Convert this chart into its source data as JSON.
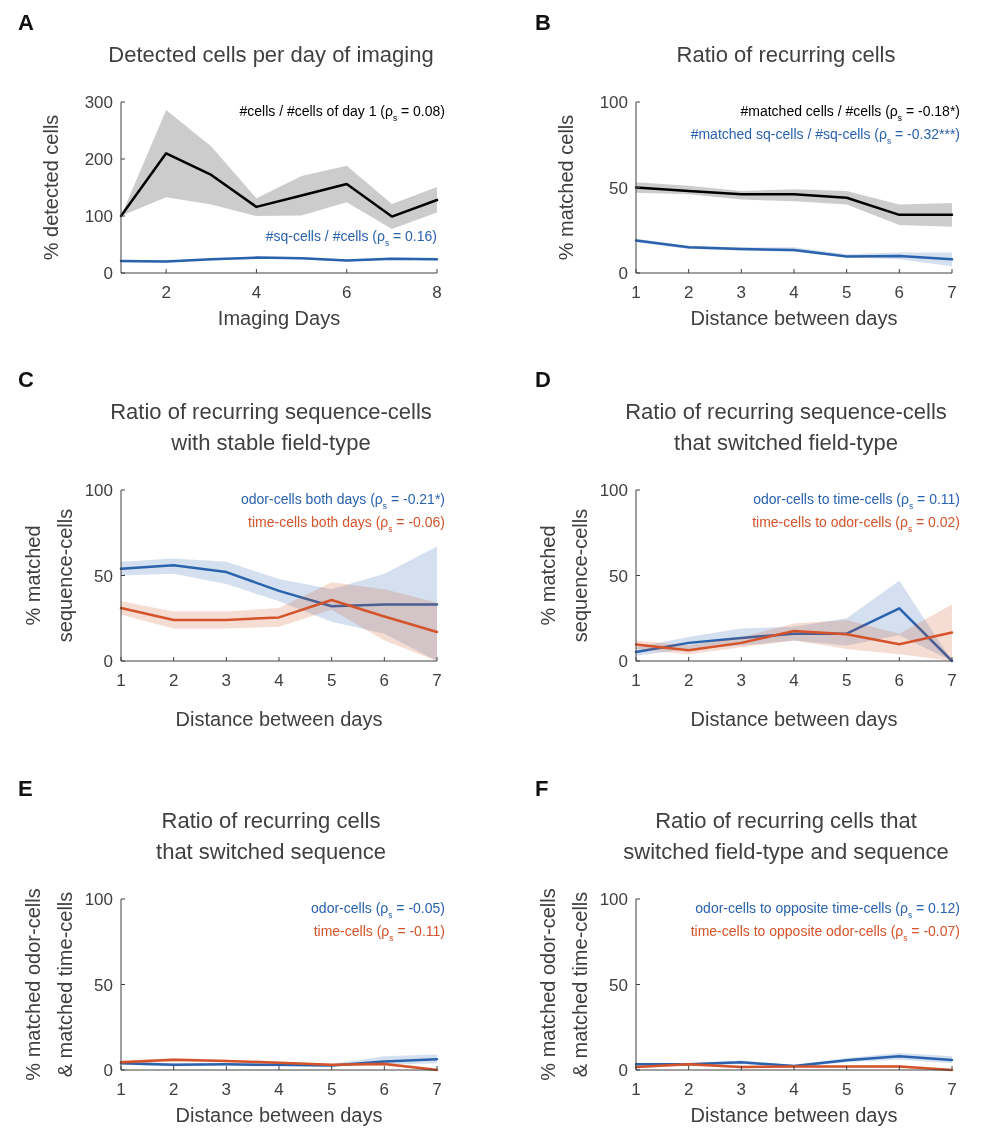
{
  "chart_data": [
    {
      "type": "line",
      "title": "Detected cells per day of imaging",
      "xlabel": "Imaging Days",
      "ylabel": "% detected cells",
      "annotations": [
        "A"
      ],
      "x": [
        1,
        2,
        3,
        4,
        5,
        6,
        7,
        8
      ],
      "xlim": [
        1,
        8
      ],
      "xticks": [
        2,
        4,
        6,
        8
      ],
      "ylim": [
        0,
        300
      ],
      "yticks": [
        0,
        100,
        200,
        300
      ],
      "legend": "top right",
      "series": [
        {
          "name": "#cells / #cells of day 1 (ρ$_{s}$ = 0.08)",
          "color": "#000000",
          "values": [
            100,
            210,
            172,
            116,
            136,
            156,
            99,
            128
          ],
          "lower": [
            100,
            133,
            120,
            100,
            101,
            124,
            77,
            106
          ],
          "upper": [
            100,
            286,
            222,
            131,
            170,
            188,
            121,
            151
          ]
        },
        {
          "name": "#sq-cells / #cells (ρ$_{s}$ = 0.16)",
          "color": "#2a62ae",
          "values": [
            21,
            20,
            24,
            27,
            26,
            22,
            25,
            24
          ],
          "lower": [
            19,
            18,
            22,
            25,
            24,
            20,
            23,
            22
          ],
          "upper": [
            23,
            22,
            26,
            29,
            28,
            24,
            27,
            26
          ]
        }
      ]
    },
    {
      "type": "line",
      "title": "Ratio of recurring cells",
      "xlabel": "Distance between days",
      "ylabel": "% matched cells",
      "annotations": [
        "B"
      ],
      "x": [
        1,
        2,
        3,
        4,
        5,
        6,
        7
      ],
      "xlim": [
        1,
        7
      ],
      "xticks": [
        1,
        2,
        3,
        4,
        5,
        6,
        7
      ],
      "ylim": [
        0,
        100
      ],
      "yticks": [
        0,
        50,
        100
      ],
      "legend": "top right",
      "series": [
        {
          "name": "#matched cells / #cells (ρ$_{s}$ = -0.18*)",
          "color": "#000000",
          "values": [
            50,
            48,
            46,
            46,
            44,
            34,
            34
          ],
          "lower": [
            47,
            46,
            43,
            42,
            40,
            28,
            27
          ],
          "upper": [
            53,
            51,
            48,
            49,
            48,
            40,
            41
          ]
        },
        {
          "name": "#matched sq-cells / #sq-cells (ρ$_{s}$ = -0.32***)",
          "color": "#2a62ae",
          "values": [
            19,
            15,
            14,
            13.5,
            9.6,
            10,
            8
          ],
          "lower": [
            18,
            14,
            13,
            12.5,
            9,
            8,
            4
          ],
          "upper": [
            20,
            16,
            15,
            15,
            11,
            12,
            12
          ]
        }
      ]
    },
    {
      "type": "line",
      "title": "Ratio of recurring sequence-cells\nwith stable field-type",
      "xlabel": "Distance between days",
      "ylabel": "% matched\nsequence-cells",
      "annotations": [
        "C"
      ],
      "x": [
        1,
        2,
        3,
        4,
        5,
        6,
        7
      ],
      "xlim": [
        1,
        7
      ],
      "xticks": [
        1,
        2,
        3,
        4,
        5,
        6,
        7
      ],
      "ylim": [
        0,
        100
      ],
      "yticks": [
        0,
        50,
        100
      ],
      "legend": "top right",
      "series": [
        {
          "name": "odor-cells both days (ρ$_{s}$ = -0.21*)",
          "color": "#2a62ae",
          "values": [
            54,
            56,
            52,
            41,
            32,
            33,
            33
          ],
          "lower": [
            50,
            51,
            45,
            35,
            23,
            16,
            0
          ],
          "upper": [
            58,
            60,
            58,
            48,
            42,
            51,
            67
          ]
        },
        {
          "name": "time-cells both days (ρ$_{s}$ = -0.06)",
          "color": "#d4532a",
          "values": [
            31,
            24,
            24,
            25.5,
            35.7,
            26,
            17
          ],
          "lower": [
            27,
            19,
            19,
            20,
            30,
            12,
            0
          ],
          "upper": [
            35,
            29,
            29,
            31,
            46,
            42,
            34
          ]
        }
      ]
    },
    {
      "type": "line",
      "title": "Ratio of recurring sequence-cells\nthat switched field-type",
      "xlabel": "Distance between days",
      "ylabel": "% matched\nsequence-cells",
      "annotations": [
        "D"
      ],
      "x": [
        1,
        2,
        3,
        4,
        5,
        6,
        7
      ],
      "xlim": [
        1,
        7
      ],
      "xticks": [
        1,
        2,
        3,
        4,
        5,
        6,
        7
      ],
      "ylim": [
        0,
        100
      ],
      "yticks": [
        0,
        50,
        100
      ],
      "legend": "top right",
      "series": [
        {
          "name": "odor-cells to time-cells (ρ$_{s}$ = 0.11)",
          "color": "#2a62ae",
          "values": [
            5.3,
            10.6,
            13.5,
            16,
            16,
            30.8,
            0
          ],
          "lower": [
            3,
            7,
            9,
            12,
            9,
            15,
            0
          ],
          "upper": [
            8,
            14,
            19,
            20,
            25,
            47,
            0
          ]
        },
        {
          "name": "time-cells to odor-cells (ρ$_{s}$ = 0.02)",
          "color": "#d4532a",
          "values": [
            9.6,
            6.3,
            10.6,
            17.5,
            15.7,
            9.8,
            16.7
          ],
          "lower": [
            7,
            4,
            8,
            12,
            7,
            4,
            0
          ],
          "upper": [
            12,
            9,
            14,
            22,
            24,
            16,
            33
          ]
        }
      ]
    },
    {
      "type": "line",
      "title": "Ratio of recurring cells\nthat switched sequence",
      "xlabel": "Distance between days",
      "ylabel": "% matched odor-cells\n& matched time-cells",
      "annotations": [
        "E"
      ],
      "x": [
        1,
        2,
        3,
        4,
        5,
        6,
        7
      ],
      "xlim": [
        1,
        7
      ],
      "xticks": [
        1,
        2,
        3,
        4,
        5,
        6,
        7
      ],
      "ylim": [
        0,
        100
      ],
      "yticks": [
        0,
        50,
        100
      ],
      "legend": "top right",
      "series": [
        {
          "name": "odor-cells (ρ$_{s}$ = -0.05)",
          "color": "#2a62ae",
          "values": [
            4,
            3,
            3.3,
            3,
            2.7,
            5,
            6.3
          ],
          "lower": [
            3,
            2,
            2.5,
            2,
            2,
            3,
            4
          ],
          "upper": [
            5,
            4,
            4,
            4,
            3.5,
            8,
            9
          ]
        },
        {
          "name": "time-cells (ρ$_{s}$ = -0.11)",
          "color": "#d4532a",
          "values": [
            4.5,
            6,
            5.3,
            4.3,
            3,
            3.5,
            0
          ],
          "lower": [
            3.5,
            5,
            4.5,
            3.5,
            2.5,
            2.5,
            0
          ],
          "upper": [
            5.5,
            7,
            6,
            5,
            3.5,
            4.5,
            1
          ]
        }
      ]
    },
    {
      "type": "line",
      "title": "Ratio of recurring cells that\nswitched field-type and sequence",
      "xlabel": "Distance between days",
      "ylabel": "% matched odor-cells\n& matched time-cells",
      "annotations": [
        "F"
      ],
      "x": [
        1,
        2,
        3,
        4,
        5,
        6,
        7
      ],
      "xlim": [
        1,
        7
      ],
      "xticks": [
        1,
        2,
        3,
        4,
        5,
        6,
        7
      ],
      "ylim": [
        0,
        100
      ],
      "yticks": [
        0,
        50,
        100
      ],
      "legend": "top right",
      "series": [
        {
          "name": "odor-cells to opposite time-cells (ρ$_{s}$ = 0.12)",
          "color": "#2a62ae",
          "values": [
            3.3,
            3.3,
            4.5,
            2.3,
            5.7,
            8,
            5.9
          ],
          "lower": [
            2.5,
            2.5,
            3.5,
            1.5,
            4.5,
            6,
            4
          ],
          "upper": [
            4,
            4,
            5.5,
            3,
            7,
            10,
            8
          ]
        },
        {
          "name": "time-cells to opposite odor-cells (ρ$_{s}$ = -0.07)",
          "color": "#d4532a",
          "values": [
            1.8,
            3.3,
            1.8,
            2,
            2,
            2,
            0
          ],
          "lower": [
            1,
            2.5,
            1,
            1.5,
            1.5,
            1,
            0
          ],
          "upper": [
            2.5,
            4,
            2.5,
            2.5,
            2.5,
            3,
            0.5
          ]
        }
      ]
    }
  ]
}
